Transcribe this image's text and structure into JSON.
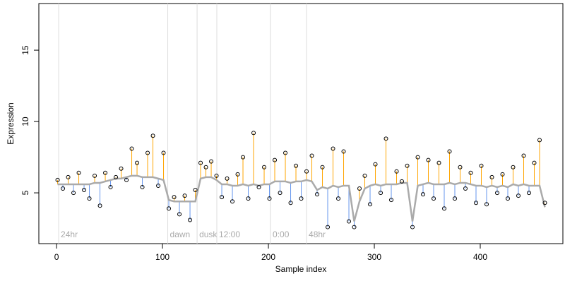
{
  "chart_data": {
    "type": "residual-scatter",
    "xlabel": "Sample index",
    "ylabel": "Expression",
    "xlim": [
      -16.7,
      478
    ],
    "ylim": [
      1.44,
      18.27
    ],
    "xticks": [
      0,
      100,
      200,
      300,
      400
    ],
    "yticks": [
      5,
      10,
      15
    ],
    "point_color": "#000000",
    "above_color": "#ffa500",
    "below_color": "#6495ed",
    "baseline_color": "#aaaaaa",
    "marker_color": "#dddddd",
    "markers": [
      {
        "x": 2,
        "label": "24hr"
      },
      {
        "x": 105,
        "label": "dawn"
      },
      {
        "x": 132.7,
        "label": "dusk"
      },
      {
        "x": 151.3,
        "label": "12:00"
      },
      {
        "x": 202,
        "label": "0:00"
      },
      {
        "x": 236,
        "label": "48hr"
      }
    ],
    "x": [
      1,
      6,
      11,
      16,
      21,
      26,
      31,
      36,
      41,
      46,
      51,
      56,
      61,
      66,
      71,
      76,
      81,
      86,
      91,
      96,
      101,
      106,
      111,
      116,
      121,
      126,
      131,
      136,
      141,
      146,
      151,
      156,
      161,
      166,
      171,
      176,
      181,
      186,
      191,
      196,
      201,
      206,
      211,
      216,
      221,
      226,
      231,
      236,
      241,
      246,
      251,
      256,
      261,
      266,
      271,
      276,
      281,
      286,
      291,
      296,
      301,
      306,
      311,
      316,
      321,
      326,
      331,
      336,
      341,
      346,
      351,
      356,
      361,
      366,
      371,
      376,
      381,
      386,
      391,
      396,
      401,
      406,
      411,
      416,
      421,
      426,
      431,
      436,
      441,
      446,
      451,
      456,
      461
    ],
    "values": [
      5.9,
      5.3,
      6.1,
      5.0,
      6.4,
      5.2,
      4.6,
      6.2,
      4.1,
      6.4,
      5.4,
      6.1,
      6.7,
      5.9,
      8.1,
      7.1,
      5.4,
      7.8,
      9.0,
      5.5,
      7.8,
      3.9,
      4.7,
      3.5,
      4.8,
      3.1,
      5.2,
      7.1,
      6.8,
      7.2,
      6.2,
      4.7,
      6.0,
      4.4,
      6.3,
      7.5,
      4.6,
      9.2,
      5.4,
      6.8,
      4.6,
      7.3,
      5.0,
      7.8,
      4.3,
      6.9,
      4.6,
      6.5,
      7.6,
      4.9,
      6.8,
      2.6,
      8.1,
      4.6,
      7.9,
      3.0,
      2.6,
      5.3,
      6.2,
      4.2,
      7.0,
      5.0,
      8.8,
      4.5,
      6.5,
      5.8,
      6.9,
      2.6,
      7.5,
      4.9,
      7.3,
      4.6,
      7.1,
      3.9,
      7.9,
      4.6,
      6.8,
      5.3,
      6.4,
      4.3,
      6.9,
      4.2,
      6.1,
      5.0,
      6.3,
      4.6,
      6.8,
      4.8,
      7.6,
      5.0,
      7.1,
      8.7,
      4.3
    ],
    "baseline": [
      5.6,
      5.6,
      5.6,
      5.6,
      5.6,
      5.6,
      5.6,
      5.7,
      5.7,
      5.8,
      5.9,
      6.0,
      6.0,
      6.1,
      6.2,
      6.2,
      6.1,
      6.1,
      6.1,
      6.0,
      5.9,
      4.5,
      4.4,
      4.4,
      4.4,
      4.4,
      4.4,
      6.0,
      6.1,
      6.1,
      5.9,
      5.6,
      5.6,
      5.5,
      5.5,
      5.6,
      5.5,
      5.6,
      5.5,
      5.6,
      5.6,
      5.8,
      5.8,
      5.8,
      5.7,
      5.8,
      5.8,
      5.9,
      5.8,
      5.2,
      5.4,
      5.3,
      5.5,
      5.4,
      5.5,
      5.5,
      3.0,
      4.4,
      5.3,
      5.5,
      5.6,
      5.5,
      5.6,
      5.6,
      5.6,
      5.7,
      5.7,
      3.0,
      5.5,
      5.6,
      5.7,
      5.6,
      5.6,
      5.6,
      5.7,
      5.6,
      5.7,
      5.7,
      5.6,
      5.5,
      5.5,
      5.4,
      5.5,
      5.4,
      5.5,
      5.4,
      5.6,
      5.5,
      5.6,
      5.5,
      5.5,
      5.5,
      4.0
    ]
  }
}
